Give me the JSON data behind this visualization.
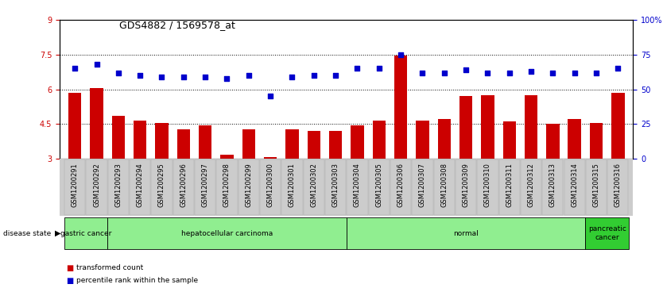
{
  "title": "GDS4882 / 1569578_at",
  "samples": [
    "GSM1200291",
    "GSM1200292",
    "GSM1200293",
    "GSM1200294",
    "GSM1200295",
    "GSM1200296",
    "GSM1200297",
    "GSM1200298",
    "GSM1200299",
    "GSM1200300",
    "GSM1200301",
    "GSM1200302",
    "GSM1200303",
    "GSM1200304",
    "GSM1200305",
    "GSM1200306",
    "GSM1200307",
    "GSM1200308",
    "GSM1200309",
    "GSM1200310",
    "GSM1200311",
    "GSM1200312",
    "GSM1200313",
    "GSM1200314",
    "GSM1200315",
    "GSM1200316"
  ],
  "transformed_count": [
    5.85,
    6.05,
    4.85,
    4.65,
    4.55,
    4.25,
    4.45,
    3.15,
    4.25,
    3.05,
    4.25,
    4.2,
    4.2,
    4.45,
    4.65,
    7.45,
    4.65,
    4.7,
    5.7,
    5.75,
    4.6,
    5.75,
    4.5,
    4.7,
    4.55,
    5.85
  ],
  "percentile_rank": [
    65,
    68,
    62,
    60,
    59,
    59,
    59,
    58,
    60,
    45,
    59,
    60,
    60,
    65,
    65,
    75,
    62,
    62,
    64,
    62,
    62,
    63,
    62,
    62,
    62,
    65
  ],
  "disease_groups": [
    {
      "label": "gastric cancer",
      "start": 0,
      "end": 2,
      "color": "#90ee90"
    },
    {
      "label": "hepatocellular carcinoma",
      "start": 2,
      "end": 13,
      "color": "#90ee90"
    },
    {
      "label": "normal",
      "start": 13,
      "end": 24,
      "color": "#90ee90"
    },
    {
      "label": "pancreatic\ncancer",
      "start": 24,
      "end": 26,
      "color": "#32cd32"
    }
  ],
  "ylim_left": [
    3,
    9
  ],
  "ylim_right": [
    0,
    100
  ],
  "yticks_left": [
    3,
    4.5,
    6,
    7.5,
    9
  ],
  "yticks_right": [
    0,
    25,
    50,
    75,
    100
  ],
  "ytick_labels_left": [
    "3",
    "4.5",
    "6",
    "7.5",
    "9"
  ],
  "ytick_labels_right": [
    "0",
    "25",
    "50",
    "75",
    "100%"
  ],
  "bar_color": "#cc0000",
  "dot_color": "#0000cc",
  "bg_color": "#ffffff",
  "xticklabel_bg": "#cccccc",
  "legend_items": [
    {
      "label": "transformed count",
      "color": "#cc0000"
    },
    {
      "label": "percentile rank within the sample",
      "color": "#0000cc"
    }
  ],
  "grid_lines": [
    4.5,
    6.0,
    7.5
  ],
  "title_fontsize": 9,
  "axis_fontsize": 7,
  "xtick_fontsize": 6
}
